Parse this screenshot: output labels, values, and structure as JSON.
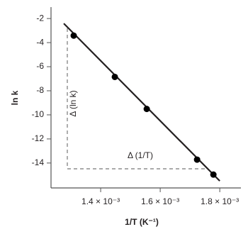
{
  "chart_data": {
    "type": "scatter",
    "x_label": "1/T (K⁻¹)",
    "y_label": "ln k",
    "annotations": [
      "Δ (ln k)",
      "Δ (1/T)"
    ],
    "x": [
      0.0013095,
      0.0014476,
      0.0015548,
      0.0017238,
      0.0017786
    ],
    "values": [
      -3.42,
      -6.85,
      -9.51,
      -13.72,
      -14.96
    ],
    "color": "#000000",
    "fit_line": {
      "x": [
        0.0012762,
        0.0018
      ],
      "values": [
        -2.41,
        -15.49
      ],
      "color": "#231f20"
    },
    "xlim": [
      0.0012333,
      0.001871
    ],
    "ylim": [
      -16.07,
      -1.05
    ],
    "xticks": [
      {
        "value": 0.0014,
        "label": "1.4 × 10⁻³"
      },
      {
        "value": 0.0016,
        "label": "1.6 × 10⁻³"
      },
      {
        "value": 0.0018,
        "label": "1.8 × 10⁻³"
      }
    ],
    "yticks": [
      -2,
      -4,
      -6,
      -8,
      -10,
      -12,
      -14
    ],
    "grid": false
  }
}
